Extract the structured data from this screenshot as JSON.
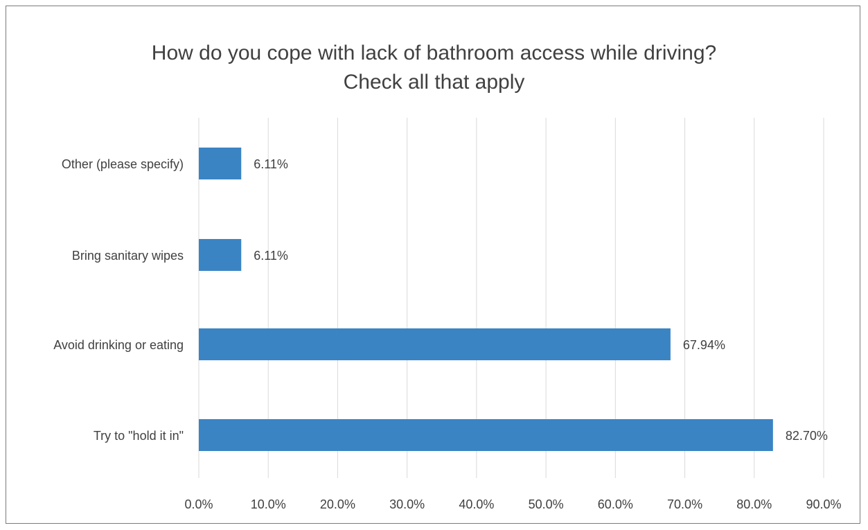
{
  "chart_data": {
    "type": "bar",
    "orientation": "horizontal",
    "title_lines": [
      "How do you cope with lack of bathroom access while driving?",
      "Check all that apply"
    ],
    "categories": [
      "Other (please specify)",
      "Bring sanitary wipes",
      "Avoid drinking or eating",
      "Try to \"hold it in\""
    ],
    "values": [
      6.11,
      6.11,
      67.94,
      82.7
    ],
    "value_labels": [
      "6.11%",
      "6.11%",
      "67.94%",
      "82.70%"
    ],
    "xlim": [
      0,
      90
    ],
    "x_ticks": [
      0,
      10,
      20,
      30,
      40,
      50,
      60,
      70,
      80,
      90
    ],
    "x_tick_labels": [
      "0.0%",
      "10.0%",
      "20.0%",
      "30.0%",
      "40.0%",
      "50.0%",
      "60.0%",
      "70.0%",
      "80.0%",
      "90.0%"
    ],
    "grid": "vertical",
    "legend": "none",
    "bar_color": "#3a84c4",
    "grid_color": "#d9d9d9",
    "text_color": "#404040"
  }
}
